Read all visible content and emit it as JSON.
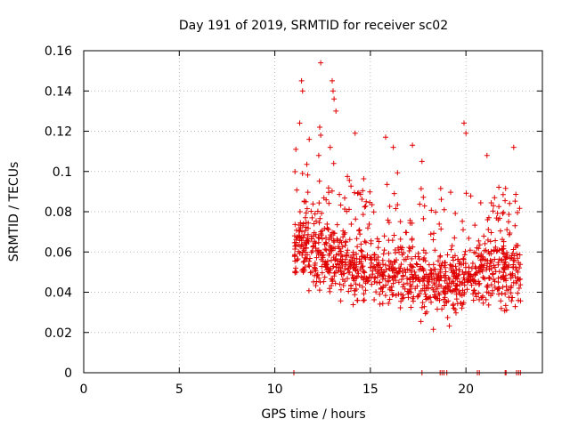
{
  "chart_data": {
    "type": "scatter",
    "title": "Day 191 of 2019, SRMTID for receiver sc02",
    "xlabel": "GPS time / hours",
    "ylabel": "SRMTID / TECUs",
    "xlim": [
      0,
      24
    ],
    "ylim": [
      0,
      0.16
    ],
    "grid": true,
    "marker": "+",
    "x_ticks": [
      0,
      5,
      10,
      15,
      20
    ],
    "x_tick_labels": [
      "0",
      "5",
      "10",
      "15",
      "20"
    ],
    "y_ticks": [
      0,
      0.02,
      0.04,
      0.06,
      0.08,
      0.1,
      0.12,
      0.14,
      0.16
    ],
    "y_tick_labels": [
      "0",
      "0.02",
      "0.04",
      "0.06",
      "0.08",
      "0.1",
      "0.12",
      "0.14",
      "0.16"
    ],
    "series": [
      {
        "name": "SRMTID",
        "color": "#e00000",
        "x_start": 11.0,
        "x_end": 22.9,
        "outliers": [
          {
            "x": 12.4,
            "y": 0.154
          },
          {
            "x": 11.4,
            "y": 0.145
          },
          {
            "x": 11.45,
            "y": 0.14
          },
          {
            "x": 13.0,
            "y": 0.145
          },
          {
            "x": 13.05,
            "y": 0.14
          },
          {
            "x": 13.1,
            "y": 0.136
          },
          {
            "x": 13.2,
            "y": 0.13
          },
          {
            "x": 11.3,
            "y": 0.124
          },
          {
            "x": 12.35,
            "y": 0.122
          },
          {
            "x": 12.4,
            "y": 0.118
          },
          {
            "x": 11.8,
            "y": 0.116
          },
          {
            "x": 14.2,
            "y": 0.119
          },
          {
            "x": 15.8,
            "y": 0.117
          },
          {
            "x": 16.2,
            "y": 0.112
          },
          {
            "x": 17.2,
            "y": 0.113
          },
          {
            "x": 19.9,
            "y": 0.124
          },
          {
            "x": 20.0,
            "y": 0.119
          },
          {
            "x": 21.1,
            "y": 0.108
          },
          {
            "x": 22.5,
            "y": 0.112
          },
          {
            "x": 12.9,
            "y": 0.112
          },
          {
            "x": 11.1,
            "y": 0.111
          },
          {
            "x": 12.3,
            "y": 0.108
          },
          {
            "x": 17.7,
            "y": 0.105
          }
        ],
        "zero_points_x": [
          11.0,
          17.7,
          18.65,
          18.75,
          18.85,
          19.0,
          20.6,
          20.7,
          22.05,
          22.1,
          22.65,
          22.75,
          22.85
        ]
      }
    ]
  }
}
